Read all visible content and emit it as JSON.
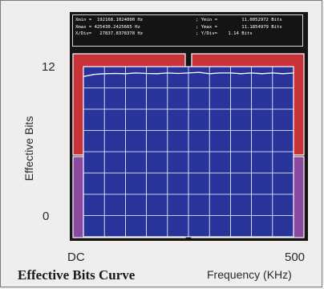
{
  "caption": "Effective Bits Curve",
  "readout": {
    "xmin": "Xmin =  192168.1024000 Hz",
    "xmax": "Xmax = 425430.2425665 Hz",
    "xdiv": "X/Div=   27837.8378378 Hz",
    "ymin": "; Ymin =         11.0052972 Bits",
    "ymax": "; Ymax =         11.1854979 Bits",
    "ydiv": "; Y/Div=    1.14 Bits"
  },
  "colors": {
    "screen": "#141414",
    "plot": "#28349a",
    "grid": "#ffffff",
    "band_top": "#c8333a",
    "band_bottom": "#8a4aa0"
  },
  "chart_data": {
    "type": "line",
    "title": "",
    "xlabel": "Frequency (KHz)",
    "ylabel": "Effective Bits",
    "x_tick_labels": [
      "DC",
      "500"
    ],
    "y_tick_labels": [
      "0",
      "12"
    ],
    "xlim": [
      0,
      500
    ],
    "ylim": [
      0,
      12
    ],
    "grid": true,
    "series": [
      {
        "x": [
          0,
          25,
          50,
          75,
          100,
          125,
          150,
          175,
          200,
          225,
          250,
          275,
          300,
          325,
          350,
          375,
          400,
          425,
          450,
          475,
          500
        ],
        "y": [
          11.3,
          11.45,
          11.5,
          11.52,
          11.5,
          11.55,
          11.52,
          11.5,
          11.55,
          11.52,
          11.55,
          11.6,
          11.5,
          11.55,
          11.55,
          11.5,
          11.55,
          11.5,
          11.55,
          11.5,
          11.55
        ]
      }
    ]
  }
}
